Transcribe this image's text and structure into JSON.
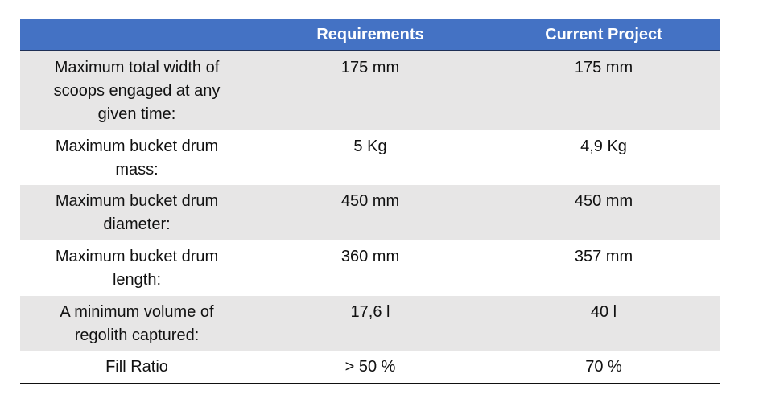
{
  "table": {
    "header": [
      "Requirements",
      "Current Project"
    ],
    "rows": [
      [
        [
          "Maximum total width of",
          "scoops engaged at any",
          "given time:"
        ],
        [
          "175 mm"
        ],
        [
          "175 mm"
        ]
      ],
      [
        [
          "Maximum bucket drum",
          "mass:"
        ],
        [
          "5 Kg"
        ],
        [
          "4,9 Kg"
        ]
      ],
      [
        [
          "Maximum bucket drum",
          "diameter:"
        ],
        [
          "450 mm"
        ],
        [
          "450 mm"
        ]
      ],
      [
        [
          "Maximum bucket drum",
          "length:"
        ],
        [
          "360 mm"
        ],
        [
          "357 mm"
        ]
      ],
      [
        [
          "A minimum volume of",
          "regolith captured:"
        ],
        [
          "17,6 l"
        ],
        [
          "40 l"
        ]
      ],
      [
        [
          "Fill Ratio"
        ],
        [
          "> 50 %"
        ],
        [
          "70 %"
        ]
      ]
    ]
  }
}
